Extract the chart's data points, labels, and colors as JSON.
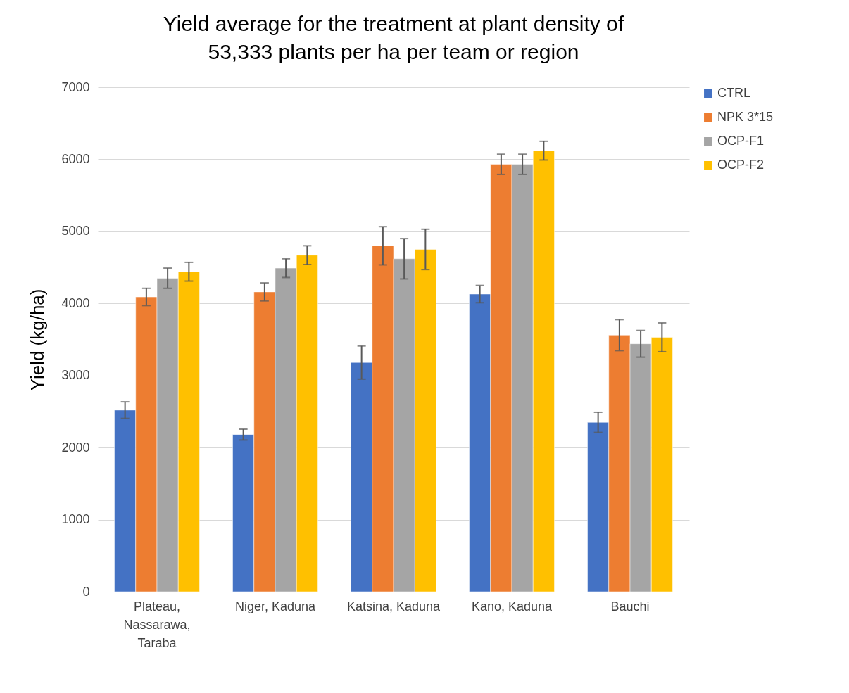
{
  "chart_data": {
    "type": "bar",
    "title": "Yield average for the treatment at plant density of 53,333 plants per ha per team or region",
    "ylabel": "Yield (kg/ha)",
    "categories": [
      "Plateau, Nassarawa, Taraba",
      "Niger, Kaduna",
      "Katsina, Kaduna",
      "Kano, Kaduna",
      "Bauchi"
    ],
    "series": [
      {
        "name": "CTRL",
        "color": "#4472c4",
        "values": [
          2520,
          2180,
          3180,
          4130,
          2350
        ],
        "errors": [
          115,
          75,
          230,
          120,
          140
        ]
      },
      {
        "name": "NPK 3*15",
        "color": "#ed7d31",
        "values": [
          4090,
          4160,
          4800,
          5930,
          3560
        ],
        "errors": [
          120,
          125,
          265,
          140,
          215
        ]
      },
      {
        "name": "OCP-F1",
        "color": "#a5a5a5",
        "values": [
          4350,
          4490,
          4620,
          5930,
          3440
        ],
        "errors": [
          140,
          130,
          280,
          140,
          185
        ]
      },
      {
        "name": "OCP-F2",
        "color": "#ffc000",
        "values": [
          4440,
          4670,
          4750,
          6120,
          3530
        ],
        "errors": [
          130,
          130,
          280,
          130,
          200
        ]
      }
    ],
    "ylim": [
      0,
      7000
    ],
    "yticks": [
      0,
      1000,
      2000,
      3000,
      4000,
      5000,
      6000,
      7000
    ],
    "grid": "y",
    "legend": "right"
  }
}
